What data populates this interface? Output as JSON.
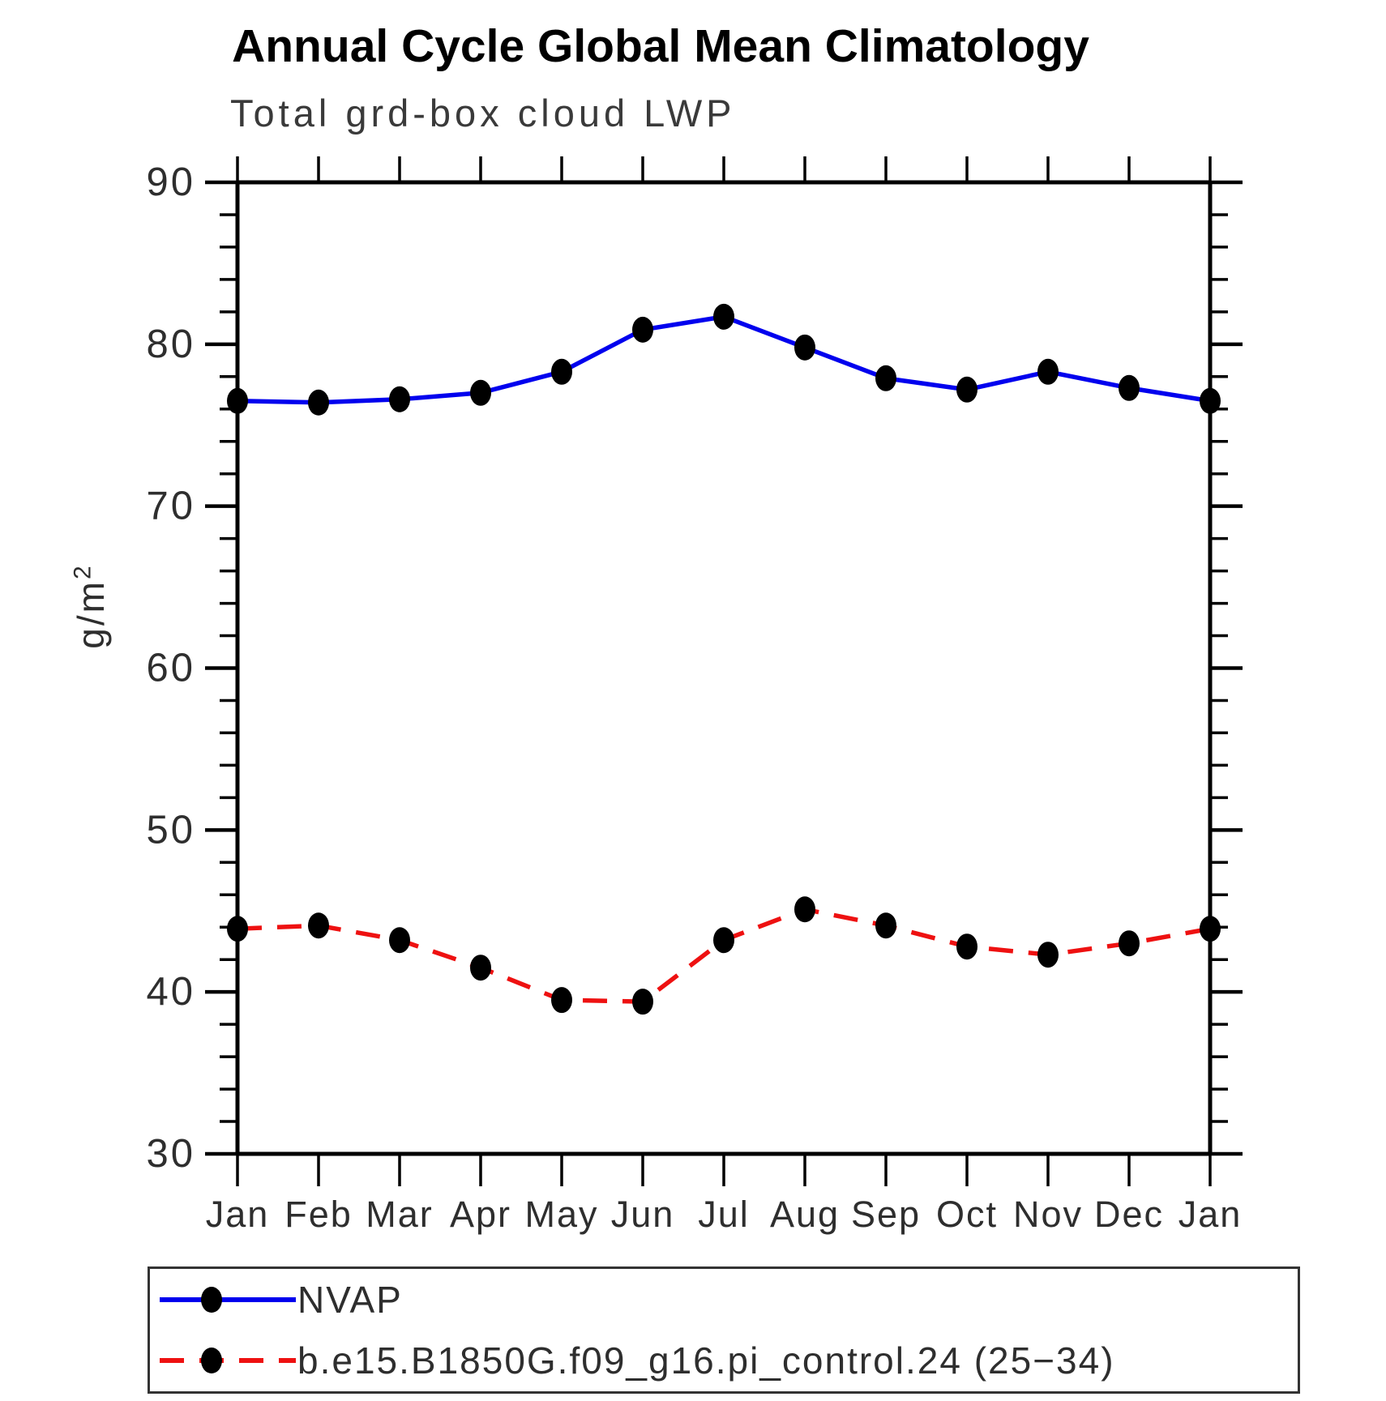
{
  "title": "Annual Cycle Global Mean Climatology",
  "subtitle": "Total grd-box cloud LWP",
  "y_axis_title": {
    "base": "g/m",
    "exponent": "2"
  },
  "legend": {
    "items": [
      {
        "label": "NVAP"
      },
      {
        "label": "b.e15.B1850G.f09_g16.pi_control.24 (25−34)"
      }
    ]
  },
  "colors": {
    "nvap_line": "#0000ee",
    "model_line": "#ee1111",
    "marker": "#000000",
    "axis": "#000000",
    "tick_text": "#2e2e2e",
    "legend_border": "#333333",
    "background": "#ffffff"
  },
  "chart_data": {
    "type": "line",
    "title": "Annual Cycle Global Mean Climatology",
    "subtitle": "Total grd-box cloud LWP",
    "ylabel": "g/m²",
    "ylim": [
      30,
      90
    ],
    "y_major_ticks": [
      30,
      40,
      50,
      60,
      70,
      80,
      90
    ],
    "y_minor_step": 2,
    "x_categories": [
      "Jan",
      "Feb",
      "Mar",
      "Apr",
      "May",
      "Jun",
      "Jul",
      "Aug",
      "Sep",
      "Oct",
      "Nov",
      "Dec",
      "Jan"
    ],
    "grid": false,
    "legend_position": "bottom",
    "series": [
      {
        "name": "NVAP",
        "color": "#0000ee",
        "line_style": "solid",
        "marker": "filled-circle",
        "values": [
          76.5,
          76.4,
          76.6,
          77.0,
          78.3,
          80.9,
          81.7,
          79.8,
          77.9,
          77.2,
          78.3,
          77.3,
          76.5
        ]
      },
      {
        "name": "b.e15.B1850G.f09_g16.pi_control.24 (25−34)",
        "color": "#ee1111",
        "line_style": "dashed",
        "marker": "filled-circle",
        "values": [
          43.9,
          44.1,
          43.2,
          41.5,
          39.5,
          39.4,
          43.2,
          45.1,
          44.1,
          42.8,
          42.3,
          43.0,
          43.9
        ]
      }
    ]
  }
}
